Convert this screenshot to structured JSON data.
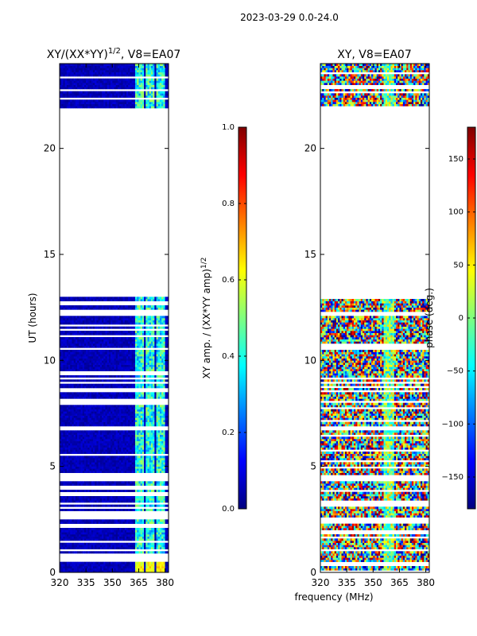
{
  "suptitle": "2023-03-29 0.0-24.0",
  "colormap": [
    "#00007f",
    "#0000ff",
    "#007fff",
    "#00ffff",
    "#7fff7f",
    "#ffff00",
    "#ff7f00",
    "#ff0000",
    "#7f0000"
  ],
  "chart_data": [
    {
      "type": "heatmap",
      "title_main": "XY/(XX*YY)",
      "title_sup": "1/2",
      "title_suffix": ", V8=EA07",
      "xlabel": "",
      "ylabel": "UT (hours)",
      "xlim": [
        320,
        382
      ],
      "ylim": [
        0,
        24
      ],
      "xticks": [
        320,
        335,
        350,
        365,
        380
      ],
      "yticks": [
        0,
        5,
        10,
        15,
        20
      ],
      "data_bands": [
        [
          0,
          0.5
        ],
        [
          0.9,
          13.0
        ],
        [
          21.9,
          24.0
        ]
      ],
      "gap_bands": [
        [
          4.25,
          4.55
        ],
        [
          6.6,
          6.85
        ],
        [
          2.1,
          2.3
        ],
        [
          12.0,
          12.1
        ]
      ],
      "rfi_channels": [
        [
          363,
          367
        ],
        [
          369,
          373
        ],
        [
          375,
          379
        ]
      ],
      "colorbar": {
        "label": "XY amp. / (XX*YY amp)",
        "label_sup": "1/2",
        "range": [
          0.0,
          1.0
        ],
        "ticks": [
          "0.0",
          "0.2",
          "0.4",
          "0.6",
          "0.8",
          "1.0"
        ]
      }
    },
    {
      "type": "heatmap",
      "title": "XY, V8=EA07",
      "xlabel": "frequency (MHz)",
      "ylabel": "",
      "xlim": [
        320,
        382
      ],
      "ylim": [
        0,
        24
      ],
      "xticks": [
        320,
        335,
        350,
        365,
        380
      ],
      "yticks": [
        0,
        5,
        10,
        15,
        20
      ],
      "data_bands": [
        [
          0,
          13.0
        ],
        [
          21.9,
          24.0
        ]
      ],
      "gap_bands": [
        [
          4.25,
          4.55
        ],
        [
          6.6,
          6.85
        ],
        [
          10.5,
          10.7
        ],
        [
          12.0,
          12.1
        ]
      ],
      "colorbar": {
        "label": "phase (deg.)",
        "range": [
          -180,
          180
        ],
        "ticks": [
          "−150",
          "−100",
          "−50",
          "0",
          "50",
          "100",
          "150"
        ],
        "tick_values": [
          -150,
          -100,
          -50,
          0,
          50,
          100,
          150
        ]
      }
    }
  ]
}
